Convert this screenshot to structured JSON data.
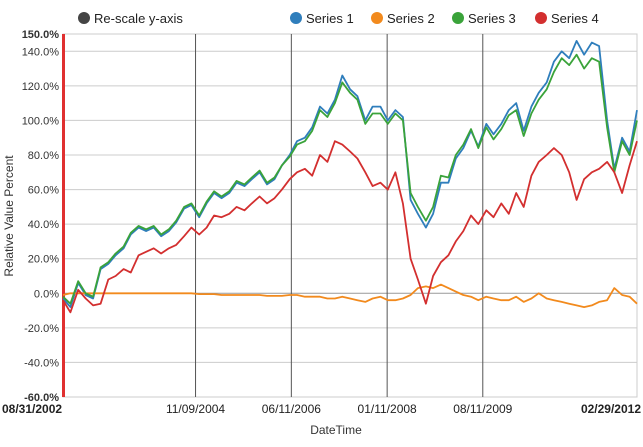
{
  "controls": {
    "rescale_label": "Re-scale y-axis",
    "rescale_color": "#444444"
  },
  "chart_data": {
    "type": "line",
    "xlabel": "DateTime",
    "ylabel": "Relative Value Percent",
    "ylim": [
      -60,
      150
    ],
    "ytick_values": [
      -60,
      -40,
      -20,
      0,
      20,
      40,
      60,
      80,
      100,
      120,
      140,
      150
    ],
    "ytick_labels": [
      "-60.0%",
      "-40.0%",
      "-20.0%",
      "0.0%",
      "20.0%",
      "40.0%",
      "60.0%",
      "80.0%",
      "100.0%",
      "120.0%",
      "140.0%",
      "150.0%"
    ],
    "xtick_labels": [
      "08/31/2002",
      "11/09/2004",
      "06/11/2006",
      "01/11/2008",
      "08/11/2009",
      "02/29/2012"
    ],
    "xtick_dates": [
      "2002-08-31",
      "2004-11-09",
      "2006-06-11",
      "2008-01-11",
      "2009-08-11",
      "2012-02-29"
    ],
    "xtick_bold": [
      true,
      false,
      false,
      false,
      false,
      true
    ],
    "grid": true,
    "legend_position": "top",
    "series": [
      {
        "name": "Series 1",
        "color": "#2f7ebc",
        "x": [
          "2002-08-31",
          "2002-10-15",
          "2002-12-01",
          "2003-01-15",
          "2003-03-01",
          "2003-04-15",
          "2003-06-01",
          "2003-07-15",
          "2003-09-01",
          "2003-10-15",
          "2003-12-01",
          "2004-01-15",
          "2004-03-01",
          "2004-04-15",
          "2004-06-01",
          "2004-07-15",
          "2004-09-01",
          "2004-10-15",
          "2004-12-01",
          "2005-01-15",
          "2005-03-01",
          "2005-04-15",
          "2005-06-01",
          "2005-07-15",
          "2005-09-01",
          "2005-10-15",
          "2005-12-01",
          "2006-01-15",
          "2006-03-01",
          "2006-04-15",
          "2006-06-01",
          "2006-07-15",
          "2006-09-01",
          "2006-10-15",
          "2006-12-01",
          "2007-01-15",
          "2007-03-01",
          "2007-04-15",
          "2007-06-01",
          "2007-07-15",
          "2007-09-01",
          "2007-10-15",
          "2007-12-01",
          "2008-01-15",
          "2008-03-01",
          "2008-04-15",
          "2008-06-01",
          "2008-07-15",
          "2008-09-01",
          "2008-10-15",
          "2008-12-01",
          "2009-01-15",
          "2009-03-01",
          "2009-04-15",
          "2009-06-01",
          "2009-07-15",
          "2009-09-01",
          "2009-10-15",
          "2009-12-01",
          "2010-01-15",
          "2010-03-01",
          "2010-04-15",
          "2010-06-01",
          "2010-07-15",
          "2010-09-01",
          "2010-10-15",
          "2010-12-01",
          "2011-01-15",
          "2011-03-01",
          "2011-04-15",
          "2011-06-01",
          "2011-07-15",
          "2011-09-01",
          "2011-10-15",
          "2011-12-01",
          "2012-01-15",
          "2012-02-29"
        ],
        "y": [
          -3,
          -8,
          6,
          -1,
          -3,
          14,
          17,
          22,
          26,
          34,
          38,
          36,
          38,
          33,
          36,
          41,
          49,
          51,
          44,
          52,
          58,
          55,
          58,
          64,
          62,
          66,
          70,
          63,
          66,
          74,
          80,
          88,
          90,
          96,
          108,
          104,
          112,
          126,
          118,
          114,
          100,
          108,
          108,
          100,
          106,
          102,
          54,
          46,
          38,
          46,
          64,
          64,
          78,
          84,
          94,
          85,
          98,
          92,
          98,
          106,
          110,
          94,
          108,
          116,
          122,
          134,
          140,
          136,
          146,
          138,
          145,
          143,
          100,
          72,
          90,
          82,
          106
        ]
      },
      {
        "name": "Series 2",
        "color": "#f28a1d",
        "x": [
          "2002-08-31",
          "2002-10-15",
          "2002-12-01",
          "2003-01-15",
          "2003-03-01",
          "2003-04-15",
          "2003-06-01",
          "2003-07-15",
          "2003-09-01",
          "2003-10-15",
          "2003-12-01",
          "2004-01-15",
          "2004-03-01",
          "2004-04-15",
          "2004-06-01",
          "2004-07-15",
          "2004-09-01",
          "2004-10-15",
          "2004-12-01",
          "2005-01-15",
          "2005-03-01",
          "2005-04-15",
          "2005-06-01",
          "2005-07-15",
          "2005-09-01",
          "2005-10-15",
          "2005-12-01",
          "2006-01-15",
          "2006-03-01",
          "2006-04-15",
          "2006-06-01",
          "2006-07-15",
          "2006-09-01",
          "2006-10-15",
          "2006-12-01",
          "2007-01-15",
          "2007-03-01",
          "2007-04-15",
          "2007-06-01",
          "2007-07-15",
          "2007-09-01",
          "2007-10-15",
          "2007-12-01",
          "2008-01-15",
          "2008-03-01",
          "2008-04-15",
          "2008-06-01",
          "2008-07-15",
          "2008-09-01",
          "2008-10-15",
          "2008-12-01",
          "2009-01-15",
          "2009-03-01",
          "2009-04-15",
          "2009-06-01",
          "2009-07-15",
          "2009-09-01",
          "2009-10-15",
          "2009-12-01",
          "2010-01-15",
          "2010-03-01",
          "2010-04-15",
          "2010-06-01",
          "2010-07-15",
          "2010-09-01",
          "2010-10-15",
          "2010-12-01",
          "2011-01-15",
          "2011-03-01",
          "2011-04-15",
          "2011-06-01",
          "2011-07-15",
          "2011-09-01",
          "2011-10-15",
          "2011-12-01",
          "2012-01-15",
          "2012-02-29"
        ],
        "y": [
          -1,
          0,
          0,
          0,
          0,
          0,
          0,
          0,
          0,
          0,
          0,
          0,
          0,
          0,
          0,
          0,
          0,
          0,
          -0.5,
          -0.5,
          -0.5,
          -1,
          -1,
          -1,
          -1,
          -1,
          -1,
          -1.5,
          -1.5,
          -1.5,
          -1,
          -1,
          -2,
          -2,
          -2,
          -3,
          -3,
          -2,
          -3,
          -4,
          -5,
          -3,
          -2,
          -4,
          -4,
          -3,
          -1,
          3,
          4,
          3,
          5,
          3,
          1,
          -1,
          -2,
          -4,
          -2,
          -3,
          -4,
          -4,
          -2,
          -5,
          -3,
          0,
          -3,
          -4,
          -5,
          -6,
          -7,
          -8,
          -7,
          -5,
          -4,
          3,
          -1,
          -2,
          -6
        ]
      },
      {
        "name": "Series 3",
        "color": "#3aa33a",
        "x": [
          "2002-08-31",
          "2002-10-15",
          "2002-12-01",
          "2003-01-15",
          "2003-03-01",
          "2003-04-15",
          "2003-06-01",
          "2003-07-15",
          "2003-09-01",
          "2003-10-15",
          "2003-12-01",
          "2004-01-15",
          "2004-03-01",
          "2004-04-15",
          "2004-06-01",
          "2004-07-15",
          "2004-09-01",
          "2004-10-15",
          "2004-12-01",
          "2005-01-15",
          "2005-03-01",
          "2005-04-15",
          "2005-06-01",
          "2005-07-15",
          "2005-09-01",
          "2005-10-15",
          "2005-12-01",
          "2006-01-15",
          "2006-03-01",
          "2006-04-15",
          "2006-06-01",
          "2006-07-15",
          "2006-09-01",
          "2006-10-15",
          "2006-12-01",
          "2007-01-15",
          "2007-03-01",
          "2007-04-15",
          "2007-06-01",
          "2007-07-15",
          "2007-09-01",
          "2007-10-15",
          "2007-12-01",
          "2008-01-15",
          "2008-03-01",
          "2008-04-15",
          "2008-06-01",
          "2008-07-15",
          "2008-09-01",
          "2008-10-15",
          "2008-12-01",
          "2009-01-15",
          "2009-03-01",
          "2009-04-15",
          "2009-06-01",
          "2009-07-15",
          "2009-09-01",
          "2009-10-15",
          "2009-12-01",
          "2010-01-15",
          "2010-03-01",
          "2010-04-15",
          "2010-06-01",
          "2010-07-15",
          "2010-09-01",
          "2010-10-15",
          "2010-12-01",
          "2011-01-15",
          "2011-03-01",
          "2011-04-15",
          "2011-06-01",
          "2011-07-15",
          "2011-09-01",
          "2011-10-15",
          "2011-12-01",
          "2012-01-15",
          "2012-02-29"
        ],
        "y": [
          -2,
          -6,
          7,
          0,
          -2,
          15,
          18,
          23,
          27,
          35,
          39,
          37,
          39,
          34,
          37,
          42,
          50,
          52,
          45,
          53,
          59,
          56,
          59,
          65,
          63,
          67,
          71,
          64,
          67,
          74,
          79,
          86,
          88,
          94,
          106,
          102,
          110,
          122,
          116,
          112,
          98,
          104,
          104,
          98,
          104,
          100,
          58,
          50,
          42,
          50,
          68,
          67,
          80,
          86,
          95,
          84,
          96,
          89,
          95,
          103,
          106,
          91,
          104,
          112,
          118,
          128,
          136,
          132,
          138,
          130,
          136,
          134,
          96,
          70,
          88,
          80,
          100
        ]
      },
      {
        "name": "Series 4",
        "color": "#d32f2f",
        "x": [
          "2002-08-31",
          "2002-10-15",
          "2002-12-01",
          "2003-01-15",
          "2003-03-01",
          "2003-04-15",
          "2003-06-01",
          "2003-07-15",
          "2003-09-01",
          "2003-10-15",
          "2003-12-01",
          "2004-01-15",
          "2004-03-01",
          "2004-04-15",
          "2004-06-01",
          "2004-07-15",
          "2004-09-01",
          "2004-10-15",
          "2004-12-01",
          "2005-01-15",
          "2005-03-01",
          "2005-04-15",
          "2005-06-01",
          "2005-07-15",
          "2005-09-01",
          "2005-10-15",
          "2005-12-01",
          "2006-01-15",
          "2006-03-01",
          "2006-04-15",
          "2006-06-01",
          "2006-07-15",
          "2006-09-01",
          "2006-10-15",
          "2006-12-01",
          "2007-01-15",
          "2007-03-01",
          "2007-04-15",
          "2007-06-01",
          "2007-07-15",
          "2007-09-01",
          "2007-10-15",
          "2007-12-01",
          "2008-01-15",
          "2008-03-01",
          "2008-04-15",
          "2008-06-01",
          "2008-07-15",
          "2008-09-01",
          "2008-10-15",
          "2008-12-01",
          "2009-01-15",
          "2009-03-01",
          "2009-04-15",
          "2009-06-01",
          "2009-07-15",
          "2009-09-01",
          "2009-10-15",
          "2009-12-01",
          "2010-01-15",
          "2010-03-01",
          "2010-04-15",
          "2010-06-01",
          "2010-07-15",
          "2010-09-01",
          "2010-10-15",
          "2010-12-01",
          "2011-01-15",
          "2011-03-01",
          "2011-04-15",
          "2011-06-01",
          "2011-07-15",
          "2011-09-01",
          "2011-10-15",
          "2011-12-01",
          "2012-01-15",
          "2012-02-29"
        ],
        "y": [
          -4,
          -11,
          2,
          -3,
          -7,
          -6,
          8,
          10,
          14,
          12,
          22,
          24,
          26,
          23,
          26,
          28,
          33,
          38,
          34,
          38,
          45,
          44,
          46,
          50,
          48,
          52,
          56,
          52,
          55,
          60,
          66,
          70,
          72,
          68,
          80,
          76,
          88,
          86,
          82,
          78,
          70,
          62,
          64,
          60,
          70,
          52,
          20,
          8,
          -6,
          10,
          18,
          22,
          30,
          36,
          45,
          40,
          48,
          44,
          52,
          46,
          58,
          50,
          68,
          76,
          80,
          84,
          80,
          70,
          54,
          66,
          70,
          72,
          76,
          70,
          58,
          74,
          88
        ]
      }
    ]
  }
}
